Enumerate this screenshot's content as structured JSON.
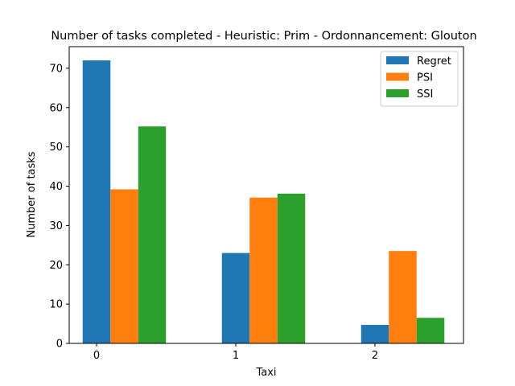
{
  "chart_data": {
    "type": "bar",
    "title": "Number of tasks completed - Heuristic: Prim - Ordonnancement: Glouton",
    "xlabel": "Taxi",
    "ylabel": "Number of tasks",
    "categories": [
      "0",
      "1",
      "2"
    ],
    "series": [
      {
        "name": "Regret",
        "color": "#1f77b4",
        "values": [
          72,
          23,
          4.7
        ]
      },
      {
        "name": "PSI",
        "color": "#ff7f0e",
        "values": [
          39.2,
          37.1,
          23.5
        ]
      },
      {
        "name": "SSI",
        "color": "#2ca02c",
        "values": [
          55.2,
          38.1,
          6.5
        ]
      }
    ],
    "ylim": [
      0,
      75.5
    ],
    "yticks": [
      0,
      10,
      20,
      30,
      40,
      50,
      60,
      70
    ],
    "grid": false,
    "legend": "top-right"
  }
}
